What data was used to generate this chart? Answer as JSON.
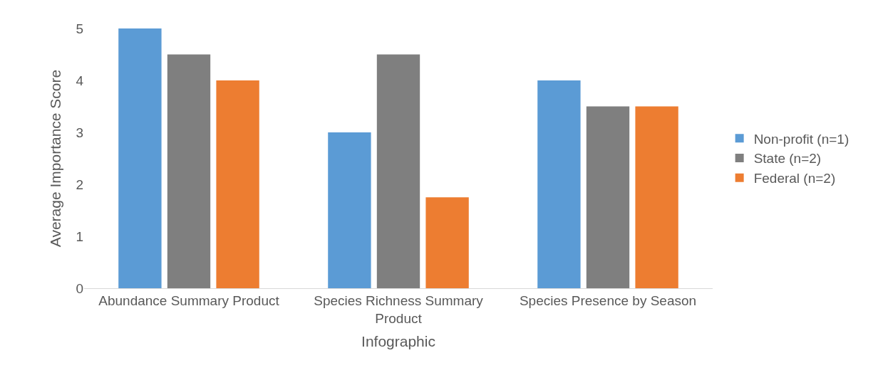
{
  "chart_data": {
    "type": "bar",
    "xlabel": "Infographic",
    "ylabel": "Average Importance Score",
    "categories": [
      "Abundance Summary Product",
      "Species Richness Summary Product",
      "Species Presence by Season"
    ],
    "series": [
      {
        "name": "Non-profit (n=1)",
        "color": "#5b9bd5",
        "values": [
          5,
          3,
          4
        ]
      },
      {
        "name": "State (n=2)",
        "color": "#7f7f7f",
        "values": [
          4.5,
          4.5,
          3.5
        ]
      },
      {
        "name": "Federal (n=2)",
        "color": "#ed7d31",
        "values": [
          4,
          1.75,
          3.5
        ]
      }
    ],
    "ylim": [
      0,
      5
    ],
    "yticks": [
      0,
      1,
      2,
      3,
      4,
      5
    ],
    "grid": false,
    "legend": "right"
  }
}
